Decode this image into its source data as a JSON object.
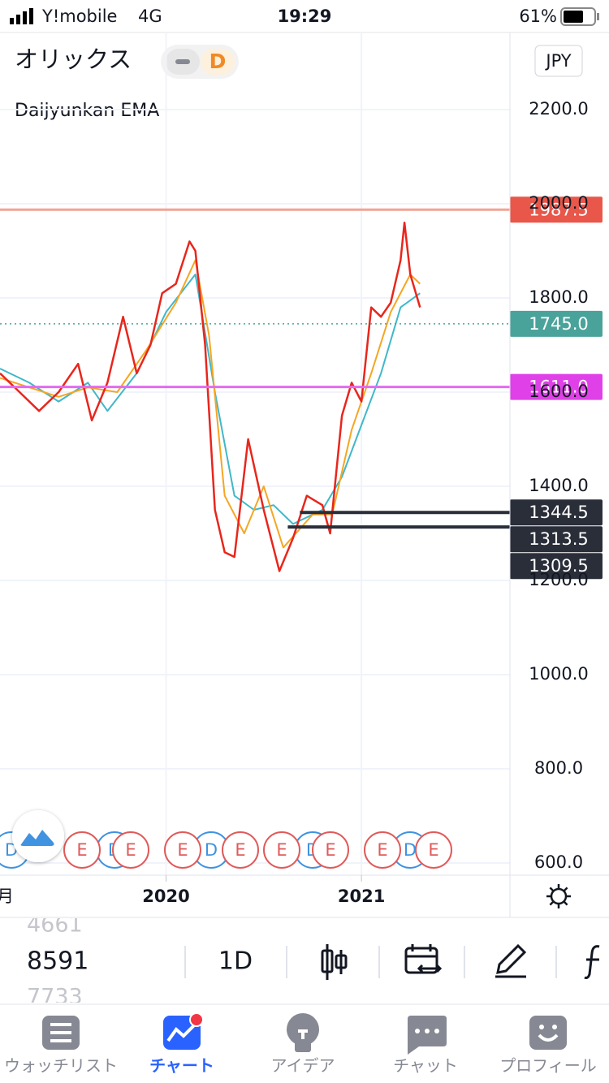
{
  "status_bar": {
    "carrier": "Y!mobile",
    "network": "4G",
    "time": "19:29",
    "battery": "61%"
  },
  "header": {
    "symbol": "オリックス",
    "interval_badge": "D",
    "currency": "JPY",
    "indicator": "Daijyunkan EMA"
  },
  "chart_data": {
    "type": "line",
    "xlim": [
      2019.15,
      2021.76
    ],
    "xticks": [
      2020,
      2021
    ],
    "x_partial_label": "月",
    "ylim": [
      575,
      2275
    ],
    "yticks": [
      {
        "value": 600,
        "label": "600.0"
      },
      {
        "value": 800,
        "label": "800.0"
      },
      {
        "value": 1000,
        "label": "1000.0"
      },
      {
        "value": 1200,
        "label": "1200.0"
      },
      {
        "value": 1400,
        "label": "1400.0"
      },
      {
        "value": 1600,
        "label": "1600.0"
      },
      {
        "value": 1800,
        "label": "1800.0"
      },
      {
        "value": 2000,
        "label": "2000.0"
      },
      {
        "value": 2200,
        "label": "2200.0"
      }
    ],
    "grid": true,
    "series": [
      {
        "color": "#40b8c8",
        "x": [
          2019.15,
          2019.3,
          2019.45,
          2019.6,
          2019.7,
          2019.85,
          2020.0,
          2020.15,
          2020.25,
          2020.35,
          2020.45,
          2020.55,
          2020.65,
          2020.8,
          2020.9,
          2021.0,
          2021.1,
          2021.2,
          2021.3
        ],
        "values": [
          1650,
          1620,
          1580,
          1620,
          1560,
          1640,
          1770,
          1850,
          1600,
          1380,
          1350,
          1360,
          1320,
          1350,
          1420,
          1530,
          1640,
          1780,
          1810
        ]
      },
      {
        "color": "#f5a623",
        "x": [
          2019.15,
          2019.3,
          2019.45,
          2019.6,
          2019.75,
          2019.9,
          2020.05,
          2020.15,
          2020.22,
          2020.3,
          2020.4,
          2020.5,
          2020.6,
          2020.75,
          2020.85,
          2020.95,
          2021.05,
          2021.15,
          2021.25,
          2021.3
        ],
        "values": [
          1630,
          1610,
          1590,
          1610,
          1600,
          1690,
          1790,
          1880,
          1720,
          1380,
          1300,
          1400,
          1270,
          1340,
          1340,
          1520,
          1640,
          1770,
          1850,
          1830
        ]
      },
      {
        "color": "#e8261c",
        "x": [
          2019.15,
          2019.25,
          2019.35,
          2019.45,
          2019.55,
          2019.62,
          2019.7,
          2019.78,
          2019.85,
          2019.92,
          2019.98,
          2020.05,
          2020.12,
          2020.15,
          2020.2,
          2020.25,
          2020.3,
          2020.35,
          2020.42,
          2020.5,
          2020.58,
          2020.65,
          2020.72,
          2020.8,
          2020.84,
          2020.9,
          2020.95,
          2021.0,
          2021.05,
          2021.1,
          2021.15,
          2021.2,
          2021.22,
          2021.25,
          2021.3
        ],
        "values": [
          1640,
          1600,
          1560,
          1600,
          1660,
          1540,
          1620,
          1760,
          1640,
          1700,
          1810,
          1830,
          1920,
          1900,
          1700,
          1350,
          1260,
          1250,
          1500,
          1350,
          1220,
          1290,
          1380,
          1360,
          1300,
          1550,
          1620,
          1580,
          1780,
          1760,
          1790,
          1880,
          1960,
          1850,
          1780
        ]
      }
    ],
    "price_levels": [
      {
        "value": 1987.5,
        "label": "1987.5",
        "color": "#f2a493",
        "tag_color": "#e8574a",
        "style": "solid"
      },
      {
        "value": 1745.0,
        "label": "1745.0",
        "color": "#4aa39a",
        "tag_color": "#4aa39a",
        "style": "dotted"
      },
      {
        "value": 1611.0,
        "label": "1611.0",
        "color": "#e36af0",
        "tag_color": "#e040e8",
        "style": "solid"
      },
      {
        "value": 1344.5,
        "label": "1344.5",
        "color": "#2a2e39",
        "tag_color": "#2a2e39",
        "style": "solid",
        "x_start": 2020.685
      },
      {
        "value": 1313.5,
        "label": "1313.5",
        "color": "#2a2e39",
        "tag_color": "#2a2e39",
        "style": "solid",
        "x_start": 2020.623
      },
      {
        "value": 1309.5,
        "label": "1309.5",
        "tag_color": "#2a2e39"
      }
    ],
    "events": [
      "D",
      "D",
      "D",
      "D",
      "D",
      "E",
      "E",
      "E",
      "E",
      "E",
      "E",
      "E",
      "E"
    ]
  },
  "toolbar": {
    "symbol_above": "4661",
    "symbol": "8591",
    "symbol_below": "7733",
    "interval": "1D"
  },
  "tabs": [
    "ウォッチリスト",
    "チャート",
    "アイデア",
    "チャット",
    "プロフィール"
  ]
}
